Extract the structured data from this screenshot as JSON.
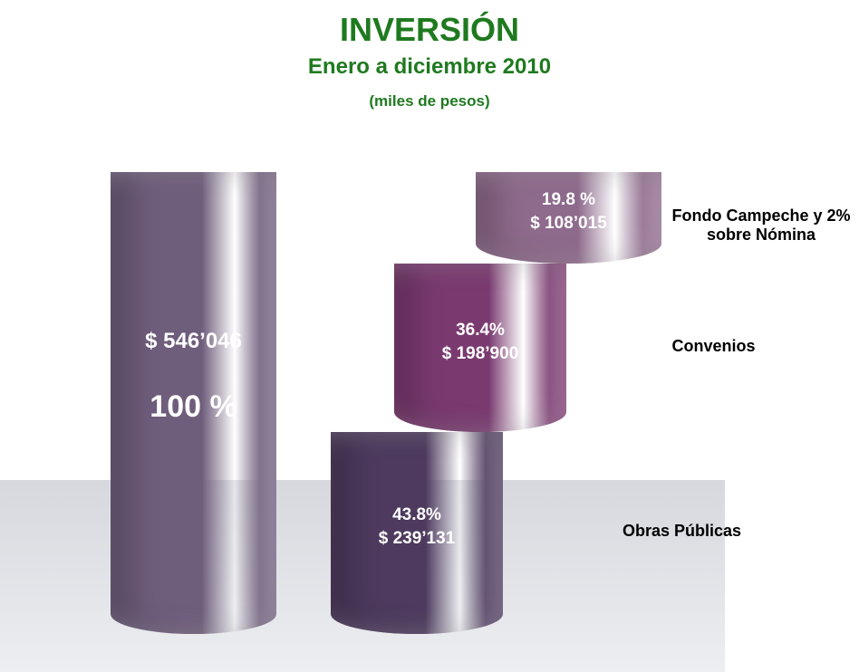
{
  "chart_data": {
    "type": "cylinder",
    "title": "INVERSIÓN",
    "subtitle": "Enero a diciembre 2010",
    "unit_label": "(miles de pesos)",
    "total": {
      "value": 546046,
      "value_label": "$ 546’046",
      "percent": 100,
      "percent_label": "100 %",
      "color": "#6f5d7c"
    },
    "categories": [
      "Obras Públicas",
      "Convenios",
      "Fondo Campeche y 2% sobre Nómina"
    ],
    "values": [
      239131,
      198900,
      108015
    ],
    "value_labels": [
      "$ 239’131",
      "$ 198’900",
      "$ 108’015"
    ],
    "percents": [
      43.8,
      36.4,
      19.8
    ],
    "percent_labels": [
      "43.8%",
      "36.4%",
      "19.8 %"
    ],
    "colors": [
      "#4d3a5e",
      "#7a3a70",
      "#8e6a8c"
    ]
  }
}
